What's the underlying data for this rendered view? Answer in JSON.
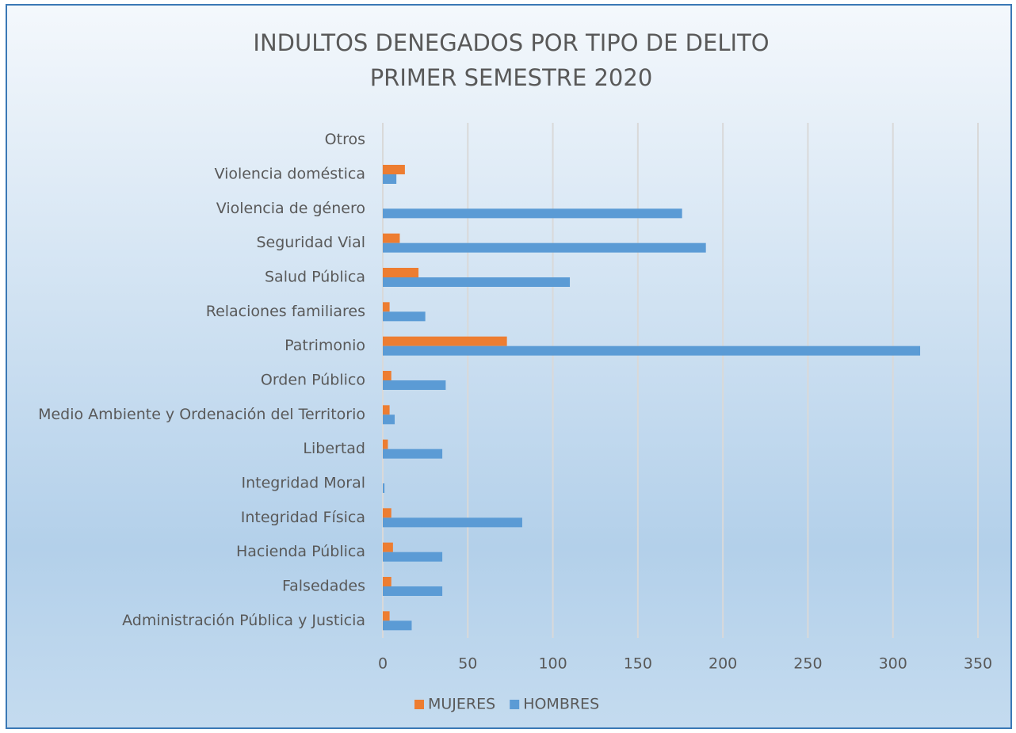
{
  "chart_data": {
    "type": "bar",
    "orientation": "horizontal",
    "title": "INDULTOS DENEGADOS POR TIPO DE DELITO",
    "subtitle": "PRIMER SEMESTRE 2020",
    "categories": [
      "Otros",
      "Violencia doméstica",
      "Violencia de género",
      "Seguridad Vial",
      "Salud Pública",
      "Relaciones familiares",
      "Patrimonio",
      "Orden Público",
      "Medio Ambiente y Ordenación del Territorio",
      "Libertad",
      "Integridad Moral",
      "Integridad Física",
      "Hacienda Pública",
      "Falsedades",
      "Administración Pública y Justicia"
    ],
    "series": [
      {
        "name": "MUJERES",
        "color": "#ed7d31",
        "values": [
          0,
          13,
          0,
          10,
          21,
          4,
          73,
          5,
          4,
          3,
          0,
          5,
          6,
          5,
          4
        ]
      },
      {
        "name": "HOMBRES",
        "color": "#5b9bd5",
        "values": [
          0,
          8,
          176,
          190,
          110,
          25,
          316,
          37,
          7,
          35,
          1,
          82,
          35,
          35,
          17
        ]
      }
    ],
    "xlim": [
      0,
      350
    ],
    "xticks": [
      0,
      50,
      100,
      150,
      200,
      250,
      300,
      350
    ],
    "grid": true,
    "legend": "bottom"
  }
}
